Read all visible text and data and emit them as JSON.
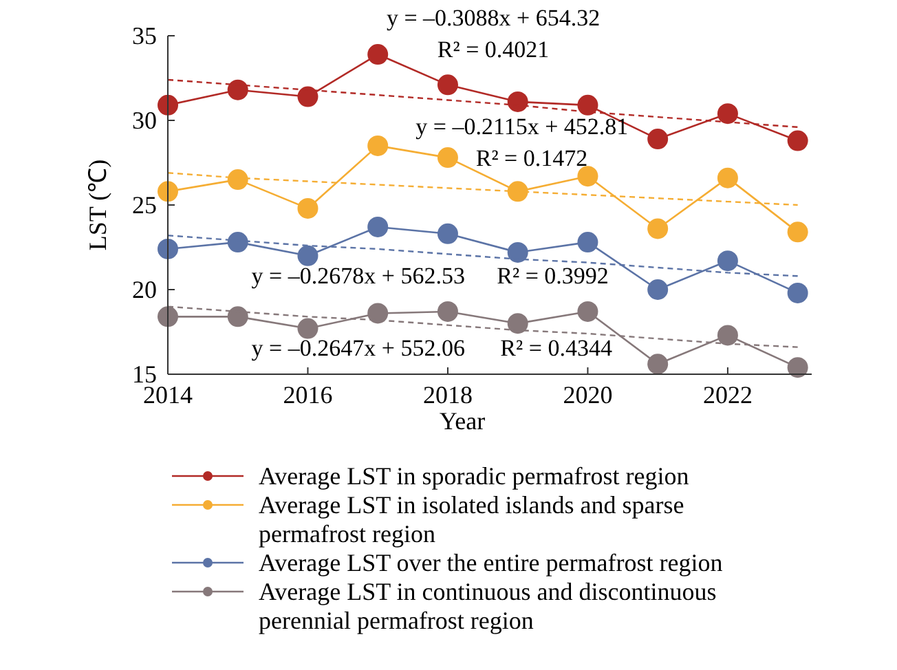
{
  "chart_data": {
    "type": "line",
    "xlabel": "Year",
    "ylabel": "LST (℃)",
    "x": [
      2014,
      2015,
      2016,
      2017,
      2018,
      2019,
      2020,
      2021,
      2022,
      2023
    ],
    "xlim": [
      2014,
      2023.2
    ],
    "xticks": [
      2014,
      2016,
      2018,
      2020,
      2022
    ],
    "ylim": [
      15,
      35
    ],
    "yticks": [
      15,
      20,
      25,
      30,
      35
    ],
    "grid": false,
    "legend": "bottom",
    "marker": "circle",
    "line_style": "solid",
    "series": [
      {
        "name": "Average LST in sporadic permafrost region",
        "color": "#b22a26",
        "values": [
          30.9,
          31.8,
          31.4,
          33.9,
          32.1,
          31.1,
          30.9,
          28.9,
          30.4,
          28.8
        ]
      },
      {
        "name": "Average LST in isolated islands and sparse permafrost region",
        "color": "#f5ad33",
        "values": [
          25.8,
          26.5,
          24.8,
          28.5,
          27.8,
          25.8,
          26.7,
          23.6,
          26.6,
          23.4
        ]
      },
      {
        "name": "Average LST over the entire permafrost region",
        "color": "#5b73a6",
        "values": [
          22.4,
          22.8,
          22.0,
          23.7,
          23.3,
          22.2,
          22.8,
          20.0,
          21.7,
          19.8
        ]
      },
      {
        "name": "Average LST in continuous and discontinuous perennial permafrost region",
        "color": "#86787a",
        "values": [
          18.4,
          18.4,
          17.7,
          18.6,
          18.7,
          18.0,
          18.7,
          15.6,
          17.3,
          15.4
        ]
      },
      {
        "type": "line",
        "color": "#b22a26",
        "values": [
          32.4,
          32.1,
          31.8,
          31.5,
          31.2,
          30.9,
          30.5,
          30.2,
          29.9,
          29.6
        ],
        "marker": "none",
        "line_style": "dashed"
      },
      {
        "type": "line",
        "color": "#f5ad33",
        "values": [
          26.9,
          26.6,
          26.4,
          26.2,
          26.0,
          25.8,
          25.6,
          25.4,
          25.2,
          25.0
        ],
        "marker": "none",
        "line_style": "dashed"
      },
      {
        "type": "line",
        "color": "#5b73a6",
        "values": [
          23.2,
          22.9,
          22.6,
          22.4,
          22.1,
          21.8,
          21.6,
          21.3,
          21.0,
          20.8
        ],
        "marker": "none",
        "line_style": "dashed"
      },
      {
        "type": "line",
        "color": "#86787a",
        "values": [
          19.0,
          18.7,
          18.4,
          18.2,
          17.9,
          17.6,
          17.4,
          17.1,
          16.8,
          16.6
        ],
        "marker": "none",
        "line_style": "dashed"
      }
    ],
    "annotations": [
      "y = –0.3088x + 654.32",
      "R² = 0.4021",
      "y = –0.2115x + 452.81",
      "R² = 0.1472",
      "y = –0.2678x + 562.53",
      "R² = 0.3992",
      "y = –0.2647x + 552.06",
      "R² = 0.4344"
    ]
  }
}
